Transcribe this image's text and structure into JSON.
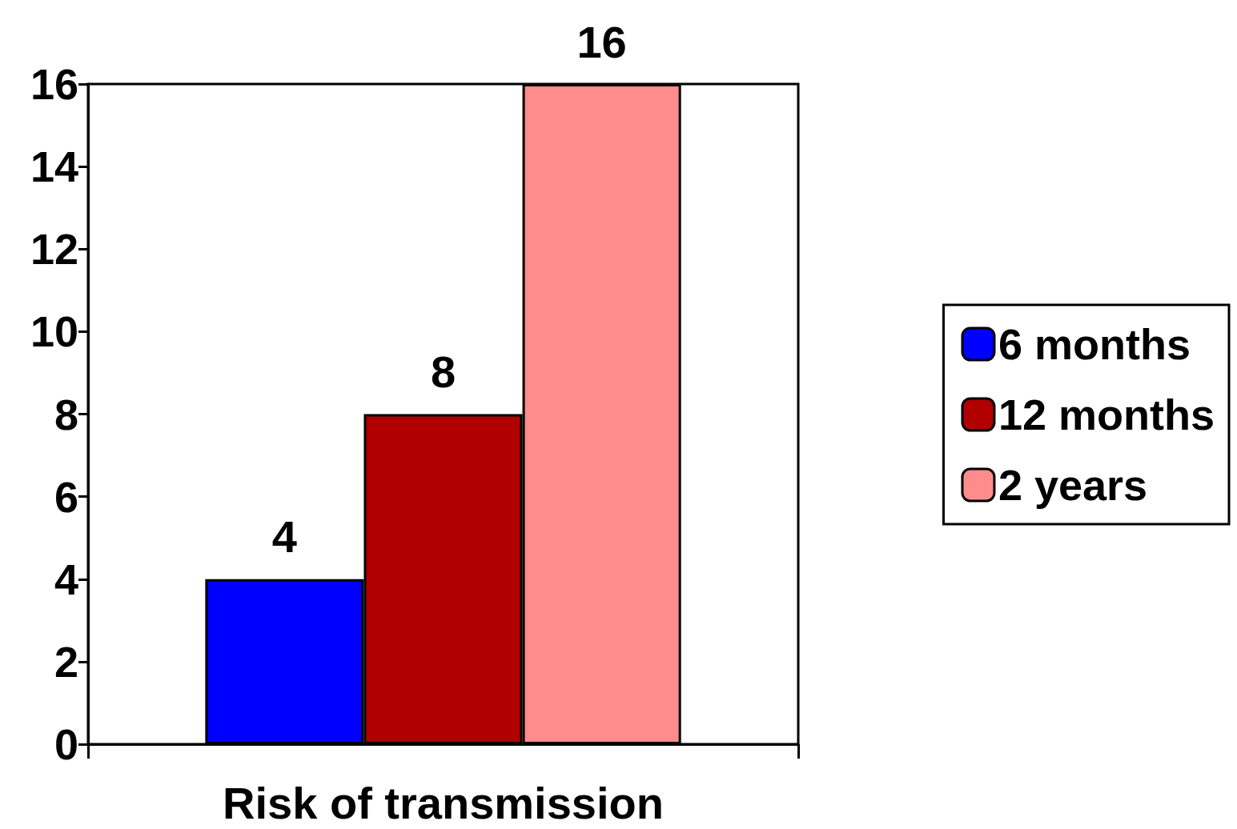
{
  "chart_data": {
    "type": "bar",
    "xlabel": "Risk of transmission",
    "categories": [
      null
    ],
    "series": [
      {
        "name": "6 months",
        "color": "#0000ff",
        "values": [
          4
        ]
      },
      {
        "name": "12 months",
        "color": "#b00000",
        "values": [
          8
        ]
      },
      {
        "name": "2 years",
        "color": "#ff8c8c",
        "values": [
          16
        ]
      }
    ],
    "ylim": [
      0,
      16
    ],
    "yticks": [
      0,
      2,
      4,
      6,
      8,
      10,
      12,
      14,
      16
    ],
    "data_labels": true,
    "grid": false,
    "legend": "right",
    "tick_labels": "y"
  }
}
